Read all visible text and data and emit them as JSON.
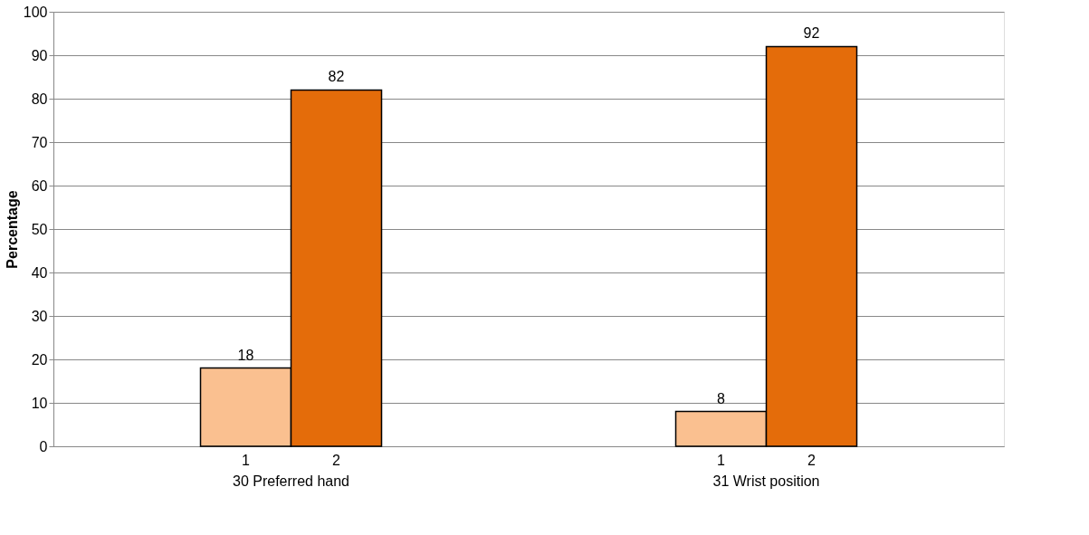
{
  "chart_data": {
    "type": "bar",
    "ylabel": "Percentage",
    "categories": [
      "30 Preferred hand",
      "31 Wrist position"
    ],
    "series": [
      {
        "name": "1",
        "color": "#fac090",
        "values": [
          18,
          8
        ]
      },
      {
        "name": "2",
        "color": "#e46c0a",
        "values": [
          82,
          92
        ]
      }
    ],
    "ylim": [
      0,
      100
    ],
    "yticks": [
      0,
      10,
      20,
      30,
      40,
      50,
      60,
      70,
      80,
      90,
      100
    ],
    "grid": "y",
    "data_labels": true,
    "legend": false
  }
}
